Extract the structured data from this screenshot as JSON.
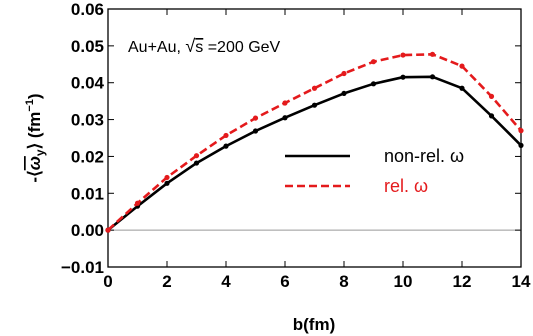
{
  "chart_data": {
    "type": "line",
    "title": "",
    "xlabel": "b(fm)",
    "ylabel_parts": {
      "prefix": "-⟨",
      "omega": "ω",
      "sub": "y",
      "suffix": "⟩ (fm",
      "exp": "−1",
      "close": ")"
    },
    "xlim": [
      0,
      14
    ],
    "ylim": [
      -0.01,
      0.06
    ],
    "x_ticks": [
      0,
      2,
      4,
      6,
      8,
      10,
      12,
      14
    ],
    "x_tick_labels": [
      "0",
      "2",
      "4",
      "6",
      "8",
      "10",
      "12",
      "14"
    ],
    "y_ticks": [
      -0.01,
      0.0,
      0.01,
      0.02,
      0.03,
      0.04,
      0.05,
      0.06
    ],
    "y_tick_labels": [
      "−0.01",
      "0.00",
      "0.01",
      "0.02",
      "0.03",
      "0.04",
      "0.05",
      "0.06"
    ],
    "grid": false,
    "zero_line": true,
    "annotation": {
      "prefix": "Au+Au, ",
      "radical": "√",
      "s": "s",
      "suffix": " =200 GeV"
    },
    "legend_placement": "right",
    "series": [
      {
        "name": "non-rel. ω",
        "color": "#000000",
        "dash": "solid",
        "x": [
          0,
          1,
          2,
          3,
          4,
          5,
          6,
          7,
          8,
          9,
          10,
          11,
          12,
          13,
          14
        ],
        "values": [
          0.0,
          0.0065,
          0.0127,
          0.0182,
          0.0228,
          0.0269,
          0.0305,
          0.0339,
          0.0371,
          0.0397,
          0.0415,
          0.0416,
          0.0385,
          0.031,
          0.023
        ]
      },
      {
        "name": "rel. ω",
        "color": "#e41a1c",
        "dash": "dashed",
        "x": [
          0,
          1,
          2,
          3,
          4,
          5,
          6,
          7,
          8,
          9,
          10,
          11,
          12,
          13,
          14
        ],
        "values": [
          0.0,
          0.0073,
          0.0143,
          0.0202,
          0.0257,
          0.0304,
          0.0345,
          0.0385,
          0.0425,
          0.0457,
          0.0475,
          0.0477,
          0.0445,
          0.0363,
          0.027
        ]
      }
    ]
  }
}
